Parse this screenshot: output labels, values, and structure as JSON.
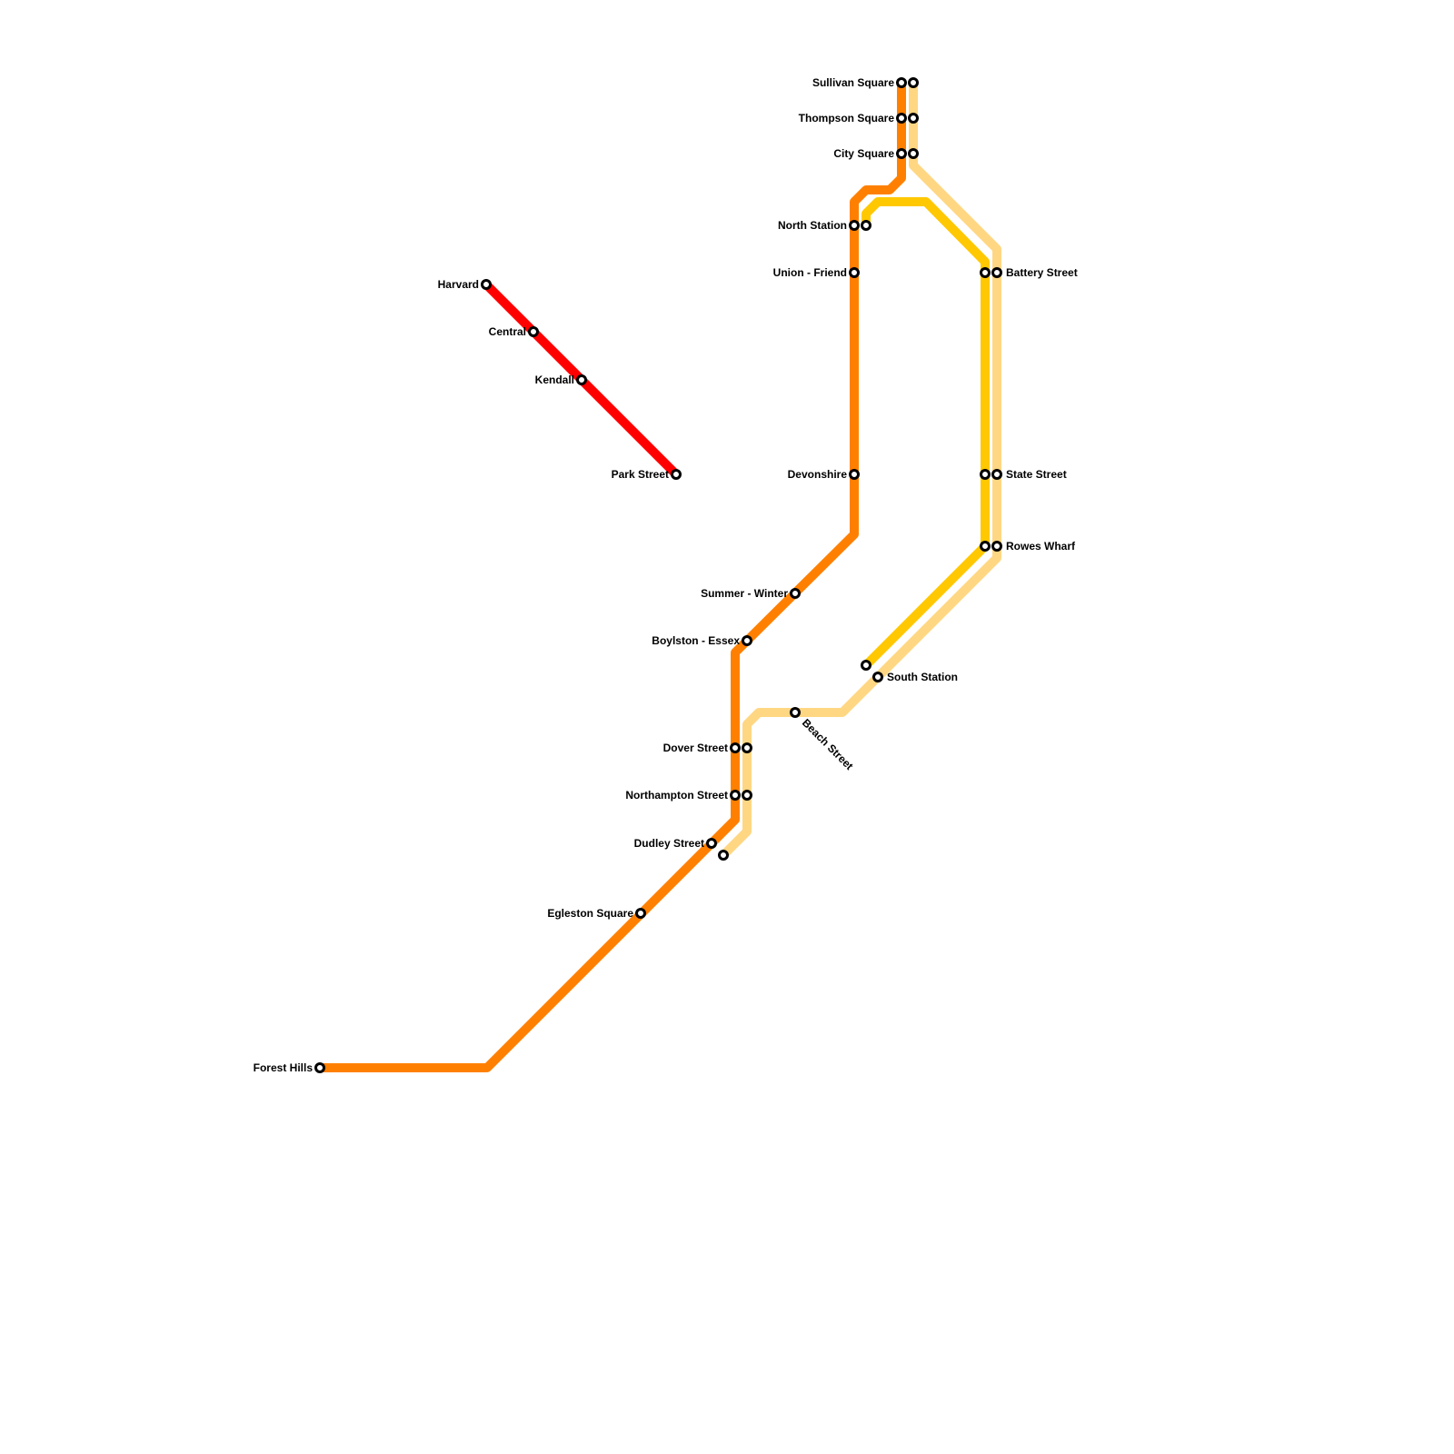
{
  "lines": [
    {
      "id": "red",
      "color": "#ff0000"
    },
    {
      "id": "orange",
      "color": "#ff8000"
    },
    {
      "id": "yellow",
      "color": "#ffc800"
    },
    {
      "id": "light-orange",
      "color": "#ffd783"
    }
  ],
  "stations": {
    "harvard": "Harvard",
    "central": "Central",
    "kendall": "Kendall",
    "park_street": "Park Street",
    "forest_hills": "Forest Hills",
    "egleston_square": "Egleston Square",
    "dudley_street": "Dudley Street",
    "northampton_street": "Northampton Street",
    "dover_street": "Dover Street",
    "boylston_essex": "Boylston - Essex",
    "summer_winter": "Summer - Winter",
    "beach_street": "Beach Street",
    "devonshire": "Devonshire",
    "union_friend": "Union - Friend",
    "north_station": "North Station",
    "city_square": "City Square",
    "thompson_square": "Thompson Square",
    "sullivan_square": "Sullivan Square",
    "battery_street": "Battery Street",
    "state_street": "State Street",
    "rowes_wharf": "Rowes Wharf",
    "south_station": "South Station"
  }
}
